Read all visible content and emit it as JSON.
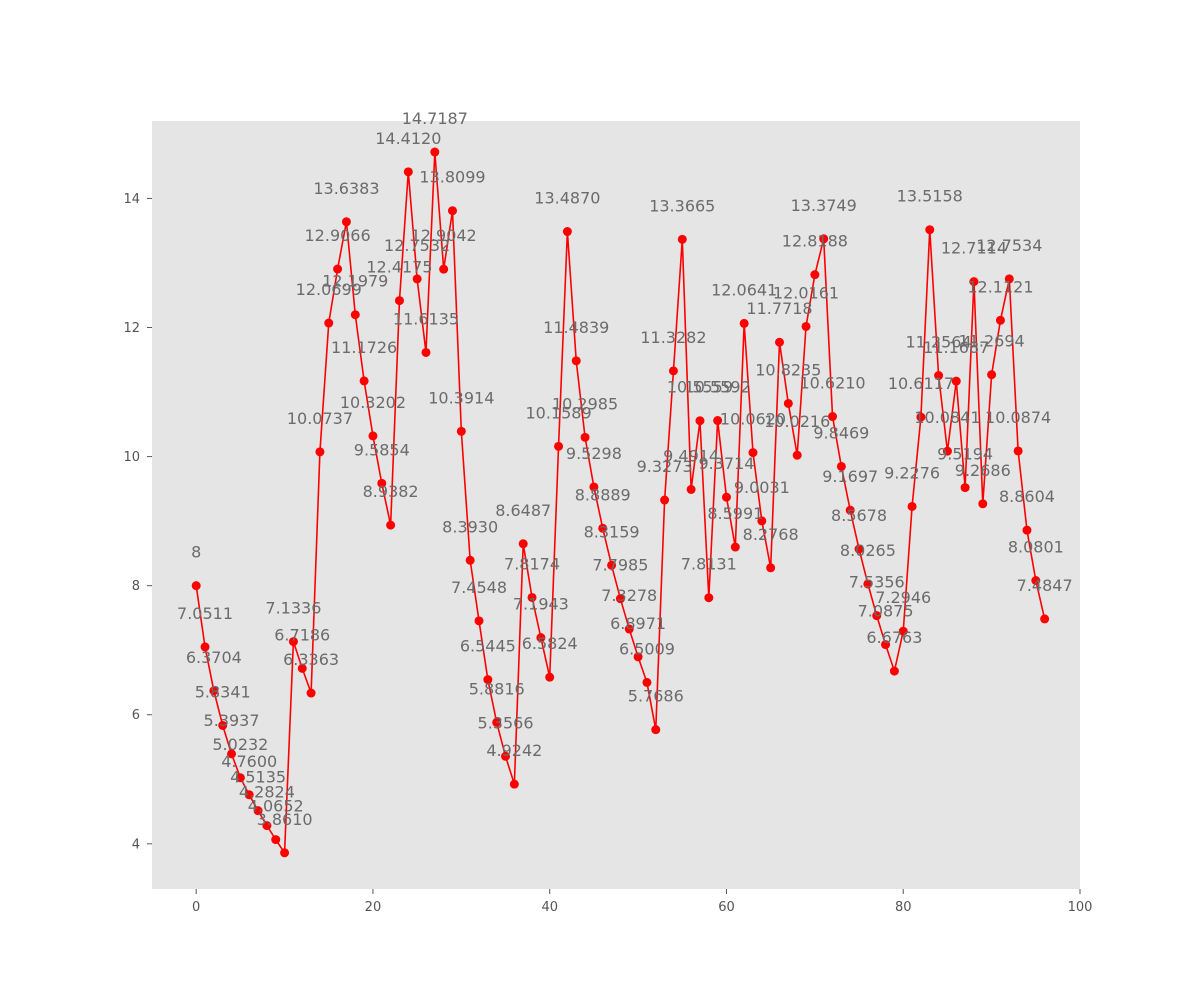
{
  "chart_data": {
    "type": "line",
    "title": "",
    "xlabel": "",
    "ylabel": "",
    "xlim": [
      -5,
      100
    ],
    "ylim": [
      3.3,
      15.2
    ],
    "x_ticks": [
      0,
      20,
      40,
      60,
      80,
      100
    ],
    "y_ticks": [
      4,
      6,
      8,
      10,
      12,
      14
    ],
    "grid": false,
    "legend": "none",
    "colors": {
      "line": "#ff0000",
      "marker": "#ff0000",
      "plot_bg": "#e5e5e5",
      "label": "#6b6b6b"
    },
    "series": [
      {
        "x": [
          0,
          1,
          2,
          3,
          4,
          5,
          6,
          7,
          8,
          9,
          10,
          11,
          12,
          13,
          14,
          15,
          16,
          17,
          18,
          19,
          20,
          21,
          22,
          23,
          24,
          25,
          26,
          27,
          28,
          29,
          30,
          31,
          32,
          33,
          34,
          35,
          36,
          37,
          38,
          39,
          40,
          41,
          42,
          43,
          44,
          45,
          46,
          47,
          48,
          49,
          50,
          51,
          52,
          53,
          54,
          55,
          56,
          57,
          58,
          59,
          60,
          61,
          62,
          63,
          64,
          65,
          66,
          67,
          68,
          69,
          70,
          71,
          72,
          73,
          74,
          75,
          76,
          77,
          78,
          79,
          80,
          81,
          82,
          83,
          84,
          85,
          86,
          87,
          88,
          89,
          90,
          91,
          92,
          93,
          94,
          95,
          96
        ],
        "values": [
          8,
          7.0511,
          6.3704,
          5.8341,
          5.3937,
          5.0232,
          4.76,
          4.5135,
          4.2824,
          4.0652,
          3.861,
          7.1336,
          6.7186,
          6.3363,
          10.0737,
          12.0699,
          12.9066,
          13.6383,
          12.1979,
          11.1726,
          10.3202,
          9.5854,
          8.9382,
          12.4175,
          14.412,
          12.7532,
          11.6135,
          14.7187,
          12.9042,
          13.8099,
          10.3914,
          8.393,
          7.4548,
          6.5445,
          5.8816,
          5.3566,
          4.9242,
          8.6487,
          7.8174,
          7.1943,
          6.5824,
          10.1589,
          13.487,
          11.4839,
          10.2985,
          9.5298,
          8.8889,
          8.3159,
          7.7985,
          7.3278,
          6.8971,
          6.5009,
          5.7686,
          9.3273,
          11.3282,
          13.3665,
          9.4914,
          10.5559,
          7.8131,
          10.5592,
          9.3714,
          8.5991,
          12.0641,
          10.062,
          9.0031,
          8.2768,
          11.7718,
          10.8235,
          10.0216,
          12.0161,
          12.8188,
          13.3749,
          10.621,
          9.8469,
          9.1697,
          8.5678,
          8.0265,
          7.5356,
          7.0875,
          6.6763,
          7.2946,
          9.2276,
          10.6117,
          13.5158,
          11.2564,
          10.0841,
          11.1687,
          9.5194,
          12.7114,
          9.2686,
          11.2694,
          12.1121,
          12.7534,
          10.0874,
          8.8604,
          8.0801,
          7.4847
        ],
        "labels": [
          "8",
          "7.0511",
          "6.3704",
          "5.8341",
          "5.3937",
          "5.0232",
          "4.7600",
          "4.5135",
          "4.2824",
          "4.0652",
          "3.8610",
          "7.1336",
          "6.7186",
          "6.3363",
          "10.0737",
          "12.0699",
          "12.9066",
          "13.6383",
          "12.1979",
          "11.1726",
          "10.3202",
          "9.5854",
          "8.9382",
          "12.4175",
          "14.4120",
          "12.7532",
          "11.6135",
          "14.7187",
          "12.9042",
          "13.8099",
          "10.3914",
          "8.3930",
          "7.4548",
          "6.5445",
          "5.8816",
          "5.3566",
          "4.9242",
          "8.6487",
          "7.8174",
          "7.1943",
          "6.5824",
          "10.1589",
          "13.4870",
          "11.4839",
          "10.2985",
          "9.5298",
          "8.8889",
          "8.3159",
          "7.7985",
          "7.3278",
          "6.8971",
          "6.5009",
          "5.7686",
          "9.3273",
          "11.3282",
          "13.3665",
          "9.4914",
          "10.5559",
          "7.8131",
          "10.5592",
          "9.3714",
          "8.5991",
          "12.0641",
          "10.0620",
          "9.0031",
          "8.2768",
          "11.7718",
          "10.8235",
          "10.0216",
          "12.0161",
          "12.8188",
          "13.3749",
          "10.6210",
          "9.8469",
          "9.1697",
          "8.5678",
          "8.0265",
          "7.5356",
          "7.0875",
          "6.6763",
          "7.2946",
          "9.2276",
          "10.6117",
          "13.5158",
          "11.2564",
          "10.0841",
          "11.1687",
          "9.5194",
          "12.7114",
          "9.2686",
          "11.2694",
          "12.1121",
          "12.7534",
          "10.0874",
          "8.8604",
          "8.0801",
          "7.4847"
        ]
      }
    ]
  }
}
